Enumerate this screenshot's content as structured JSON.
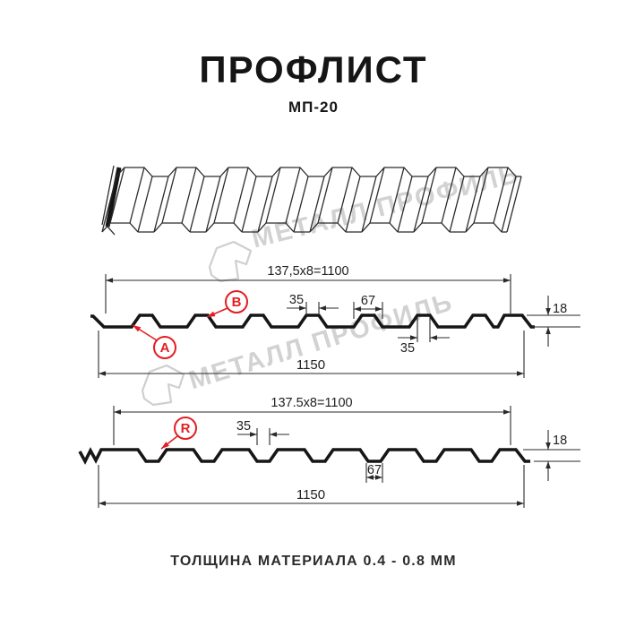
{
  "header": {
    "title": "ПРОФЛИСТ",
    "subtitle": "МП-20"
  },
  "watermarks": [
    {
      "text": "МЕТАЛЛ ПРОФИЛЬ"
    },
    {
      "text": "МЕТАЛЛ ПРОФИЛЬ"
    }
  ],
  "profile_top": {
    "pitch_dim": "137,5x8=1100",
    "crest_width_dim": "35",
    "base_width_dim": "67",
    "crest_width_dim2": "35",
    "height_dim": "18",
    "total_width_dim": "1150",
    "point_a": "A",
    "point_b": "B"
  },
  "profile_bottom": {
    "pitch_dim": "137.5x8=1100",
    "crest_width_dim": "35",
    "valley_width_dim": "67",
    "height_dim": "18",
    "total_width_dim": "1150",
    "point_r": "R"
  },
  "footer": {
    "note": "ТОЛЩИНА МАТЕРИАЛА 0.4 - 0.8 ММ"
  },
  "colors": {
    "accent": "#e31e24",
    "watermark": "#d2d2d2",
    "ink": "#151515"
  }
}
